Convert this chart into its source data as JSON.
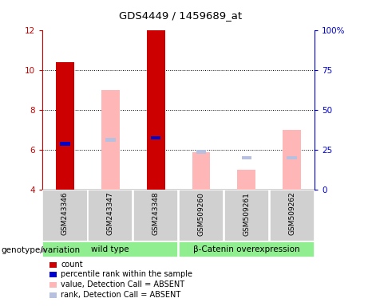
{
  "title": "GDS4449 / 1459689_at",
  "samples": [
    "GSM243346",
    "GSM243347",
    "GSM243348",
    "GSM509260",
    "GSM509261",
    "GSM509262"
  ],
  "ylim_left": [
    4,
    12
  ],
  "ylim_right": [
    0,
    100
  ],
  "yticks_left": [
    4,
    6,
    8,
    10,
    12
  ],
  "yticks_right": [
    0,
    25,
    50,
    75,
    100
  ],
  "group_spans": [
    [
      0,
      2,
      "wild type"
    ],
    [
      3,
      5,
      "β-Catenin overexpression"
    ]
  ],
  "bars": {
    "GSM243346": {
      "count": 10.4,
      "rank": 6.3,
      "value_absent": null,
      "rank_absent": null
    },
    "GSM243347": {
      "count": null,
      "rank": null,
      "value_absent": 9.0,
      "rank_absent": 6.5
    },
    "GSM243348": {
      "count": 12.0,
      "rank": 6.6,
      "value_absent": null,
      "rank_absent": null
    },
    "GSM509260": {
      "count": null,
      "rank": null,
      "value_absent": 5.9,
      "rank_absent": 5.9
    },
    "GSM509261": {
      "count": null,
      "rank": null,
      "value_absent": 5.0,
      "rank_absent": 5.6
    },
    "GSM509262": {
      "count": null,
      "rank": null,
      "value_absent": 7.0,
      "rank_absent": 5.6
    }
  },
  "colors": {
    "count": "#cc0000",
    "rank": "#0000cc",
    "value_absent": "#ffb6b6",
    "rank_absent": "#b8c0e0",
    "left_axis": "#cc0000",
    "right_axis": "#0000cc",
    "sample_box": "#d0d0d0",
    "group_box": "#90ee90"
  },
  "bar_width": 0.4,
  "rank_sq": 0.18,
  "legend_items": [
    {
      "color": "#cc0000",
      "label": "count"
    },
    {
      "color": "#0000cc",
      "label": "percentile rank within the sample"
    },
    {
      "color": "#ffb6b6",
      "label": "value, Detection Call = ABSENT"
    },
    {
      "color": "#b8c0e0",
      "label": "rank, Detection Call = ABSENT"
    }
  ]
}
